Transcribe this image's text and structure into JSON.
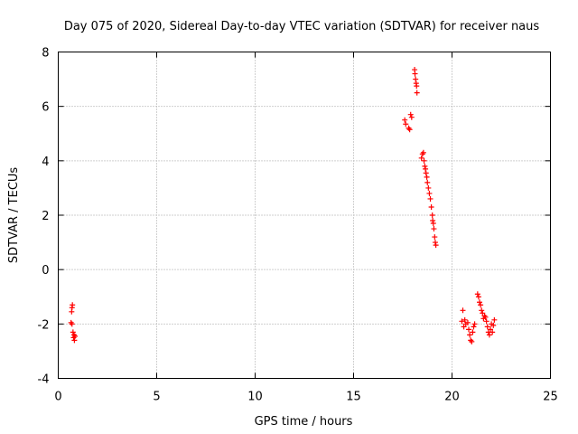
{
  "chart_data": {
    "type": "scatter",
    "title": "Day 075 of 2020, Sidereal Day-to-day VTEC variation (SDTVAR) for receiver naus",
    "xlabel": "GPS time / hours",
    "ylabel": "SDTVAR / TECUs",
    "xlim": [
      0,
      25
    ],
    "ylim": [
      -4,
      8
    ],
    "xticks": [
      "0",
      "5",
      "10",
      "15",
      "20",
      "25"
    ],
    "yticks": [
      "-4",
      "-2",
      "0",
      "2",
      "4",
      "6",
      "8"
    ],
    "grid": true,
    "marker": "plus",
    "color": "#ff0000",
    "series": [
      {
        "name": "SDTVAR",
        "points": [
          [
            0.65,
            -1.95
          ],
          [
            0.68,
            -1.55
          ],
          [
            0.7,
            -1.4
          ],
          [
            0.72,
            -1.3
          ],
          [
            0.7,
            -2.0
          ],
          [
            0.75,
            -2.3
          ],
          [
            0.78,
            -2.5
          ],
          [
            0.8,
            -2.4
          ],
          [
            0.82,
            -2.6
          ],
          [
            0.85,
            -2.45
          ],
          [
            17.6,
            5.5
          ],
          [
            17.65,
            5.35
          ],
          [
            17.8,
            5.2
          ],
          [
            17.85,
            5.15
          ],
          [
            17.9,
            5.7
          ],
          [
            17.95,
            5.6
          ],
          [
            18.1,
            7.35
          ],
          [
            18.12,
            7.2
          ],
          [
            18.15,
            7.0
          ],
          [
            18.18,
            6.85
          ],
          [
            18.2,
            6.75
          ],
          [
            18.22,
            6.5
          ],
          [
            18.45,
            4.1
          ],
          [
            18.5,
            4.25
          ],
          [
            18.55,
            4.3
          ],
          [
            18.58,
            4.0
          ],
          [
            18.62,
            3.8
          ],
          [
            18.65,
            3.7
          ],
          [
            18.68,
            3.55
          ],
          [
            18.72,
            3.4
          ],
          [
            18.75,
            3.2
          ],
          [
            18.8,
            3.0
          ],
          [
            18.85,
            2.8
          ],
          [
            18.9,
            2.6
          ],
          [
            18.95,
            2.3
          ],
          [
            19.0,
            2.0
          ],
          [
            19.02,
            1.8
          ],
          [
            19.05,
            1.7
          ],
          [
            19.08,
            1.5
          ],
          [
            19.12,
            1.2
          ],
          [
            19.15,
            1.0
          ],
          [
            19.18,
            0.9
          ],
          [
            20.5,
            -1.9
          ],
          [
            20.55,
            -1.5
          ],
          [
            20.6,
            -2.1
          ],
          [
            20.65,
            -1.85
          ],
          [
            20.7,
            -2.0
          ],
          [
            20.8,
            -1.95
          ],
          [
            20.85,
            -2.2
          ],
          [
            20.9,
            -2.4
          ],
          [
            20.95,
            -2.6
          ],
          [
            21.0,
            -2.65
          ],
          [
            21.05,
            -2.3
          ],
          [
            21.1,
            -2.1
          ],
          [
            21.15,
            -2.0
          ],
          [
            21.3,
            -0.9
          ],
          [
            21.35,
            -1.0
          ],
          [
            21.4,
            -1.2
          ],
          [
            21.45,
            -1.3
          ],
          [
            21.5,
            -1.5
          ],
          [
            21.55,
            -1.6
          ],
          [
            21.6,
            -1.8
          ],
          [
            21.65,
            -1.7
          ],
          [
            21.7,
            -1.75
          ],
          [
            21.75,
            -1.9
          ],
          [
            21.8,
            -2.1
          ],
          [
            21.85,
            -2.3
          ],
          [
            21.9,
            -2.4
          ],
          [
            21.95,
            -2.2
          ],
          [
            22.0,
            -2.0
          ],
          [
            22.05,
            -2.3
          ],
          [
            22.1,
            -2.05
          ],
          [
            22.15,
            -1.85
          ]
        ]
      }
    ]
  }
}
